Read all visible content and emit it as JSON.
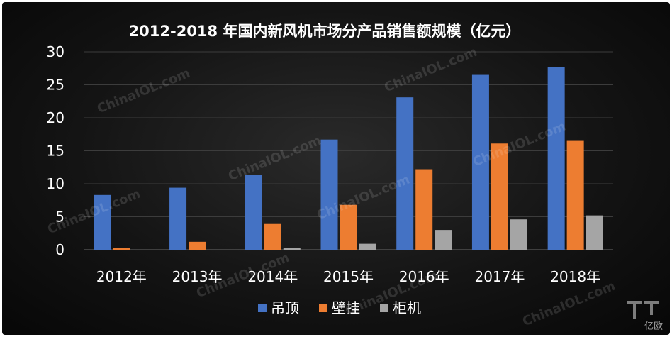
{
  "chart_data": {
    "type": "bar",
    "title": "2012-2018 年国内新风机市场分产品销售额规模（亿元）",
    "categories": [
      "2012年",
      "2013年",
      "2014年",
      "2015年",
      "2016年",
      "2017年",
      "2018年"
    ],
    "series": [
      {
        "name": "吊顶",
        "color": "#4472c4",
        "values": [
          8.3,
          9.4,
          11.3,
          16.7,
          23.1,
          26.5,
          27.7
        ]
      },
      {
        "name": "壁挂",
        "color": "#ed7d31",
        "values": [
          0.3,
          1.2,
          3.9,
          6.8,
          12.2,
          16.1,
          16.5
        ]
      },
      {
        "name": "柜机",
        "color": "#a5a5a5",
        "values": [
          0,
          0,
          0.3,
          0.9,
          3.0,
          4.6,
          5.2
        ]
      }
    ],
    "ylim": [
      0,
      30
    ],
    "yticks": [
      0,
      5,
      10,
      15,
      20,
      25,
      30
    ],
    "grid": true,
    "legend_position": "bottom"
  },
  "watermark": "ChinaIOL.com",
  "brand": {
    "logo_text": "亿欧"
  }
}
